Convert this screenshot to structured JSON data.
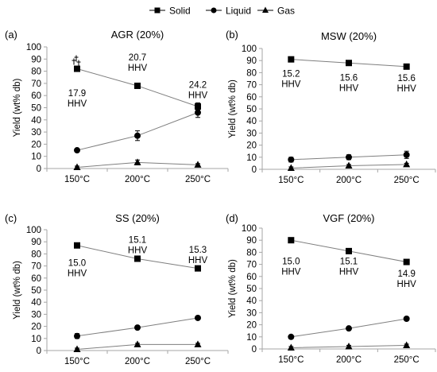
{
  "legend": {
    "position": "top-center",
    "items": [
      {
        "label": "Solid",
        "marker": "square"
      },
      {
        "label": "Liquid",
        "marker": "circle"
      },
      {
        "label": "Gas",
        "marker": "triangle"
      }
    ]
  },
  "colors": {
    "line": "#7f7f7f",
    "marker": "#000000",
    "axis": "#a6a6a6"
  },
  "chart_data": [
    {
      "type": "line",
      "panel_label": "(a)",
      "title": "AGR (20%)",
      "ylabel": "Yield (wt% db)",
      "xlabel": "",
      "categories": [
        "150°C",
        "200°C",
        "250°C"
      ],
      "ylim": [
        0,
        100
      ],
      "yticks": [
        0,
        10,
        20,
        30,
        40,
        50,
        60,
        70,
        80,
        90,
        100
      ],
      "grid": false,
      "series": [
        {
          "name": "Solid",
          "marker": "square",
          "values": [
            82,
            68,
            51
          ],
          "errors": [
            2,
            1,
            3
          ]
        },
        {
          "name": "Liquid",
          "marker": "circle",
          "values": [
            15,
            27,
            46
          ],
          "errors": [
            1,
            4,
            4
          ]
        },
        {
          "name": "Gas",
          "marker": "triangle",
          "values": [
            1,
            5,
            3
          ],
          "errors": [
            1,
            2,
            1
          ]
        }
      ],
      "annotations": [
        {
          "value": "17.9",
          "unit": "HHV",
          "category": 0,
          "y": 59.5
        },
        {
          "value": "20.7",
          "unit": "HHV",
          "category": 1,
          "y": 89
        },
        {
          "value": "24.2",
          "unit": "HHV",
          "category": 2,
          "y": 66.5
        }
      ],
      "extra_markers": [
        "daggers near the 150°C Solid point"
      ]
    },
    {
      "type": "line",
      "panel_label": "(b)",
      "title": "MSW (20%)",
      "ylabel": "Yield (wt% db)",
      "xlabel": "",
      "categories": [
        "150°C",
        "200°C",
        "250°C"
      ],
      "ylim": [
        0,
        100
      ],
      "yticks": [
        0,
        10,
        20,
        30,
        40,
        50,
        60,
        70,
        80,
        90,
        100
      ],
      "grid": false,
      "series": [
        {
          "name": "Solid",
          "marker": "square",
          "values": [
            91,
            88,
            85
          ],
          "errors": [
            0,
            0,
            0
          ]
        },
        {
          "name": "Liquid",
          "marker": "circle",
          "values": [
            8,
            10,
            12
          ],
          "errors": [
            2,
            2,
            3
          ]
        },
        {
          "name": "Gas",
          "marker": "triangle",
          "values": [
            1,
            3,
            4
          ],
          "errors": [
            1,
            1,
            1
          ]
        }
      ],
      "annotations": [
        {
          "value": "15.2",
          "unit": "HHV",
          "category": 0,
          "y": 76.5
        },
        {
          "value": "15.6",
          "unit": "HHV",
          "category": 1,
          "y": 73.5
        },
        {
          "value": "15.6",
          "unit": "HHV",
          "category": 2,
          "y": 73
        }
      ]
    },
    {
      "type": "line",
      "panel_label": "(c)",
      "title": "SS (20%)",
      "ylabel": "Yield (wt% db)",
      "xlabel": "",
      "categories": [
        "150°C",
        "200°C",
        "250°C"
      ],
      "ylim": [
        0,
        100
      ],
      "yticks": [
        0,
        10,
        20,
        30,
        40,
        50,
        60,
        70,
        80,
        90,
        100
      ],
      "grid": false,
      "series": [
        {
          "name": "Solid",
          "marker": "square",
          "values": [
            87,
            76,
            68
          ],
          "errors": [
            0,
            0,
            0
          ]
        },
        {
          "name": "Liquid",
          "marker": "circle",
          "values": [
            12,
            19,
            27
          ],
          "errors": [
            2,
            1,
            1
          ]
        },
        {
          "name": "Gas",
          "marker": "triangle",
          "values": [
            1,
            5,
            5
          ],
          "errors": [
            1,
            1,
            1
          ]
        }
      ],
      "annotations": [
        {
          "value": "15.0",
          "unit": "HHV",
          "category": 0,
          "y": 70
        },
        {
          "value": "15.1",
          "unit": "HHV",
          "category": 1,
          "y": 89
        },
        {
          "value": "15.3",
          "unit": "HHV",
          "category": 2,
          "y": 81
        }
      ]
    },
    {
      "type": "line",
      "panel_label": "(d)",
      "title": "VGF (20%)",
      "ylabel": "Yield (wt% db)",
      "xlabel": "",
      "categories": [
        "150°C",
        "200°C",
        "250°C"
      ],
      "ylim": [
        0,
        100
      ],
      "yticks": [
        0,
        10,
        20,
        30,
        40,
        50,
        60,
        70,
        80,
        90,
        100
      ],
      "grid": false,
      "series": [
        {
          "name": "Solid",
          "marker": "square",
          "values": [
            90,
            81,
            72
          ],
          "errors": [
            0,
            0,
            0
          ]
        },
        {
          "name": "Liquid",
          "marker": "circle",
          "values": [
            10,
            17,
            25
          ],
          "errors": [
            1,
            1,
            1
          ]
        },
        {
          "name": "Gas",
          "marker": "triangle",
          "values": [
            1,
            2,
            3
          ],
          "errors": [
            1,
            1,
            1
          ]
        }
      ],
      "annotations": [
        {
          "value": "15.0",
          "unit": "HHV",
          "category": 0,
          "y": 70
        },
        {
          "value": "15.1",
          "unit": "HHV",
          "category": 1,
          "y": 70
        },
        {
          "value": "14.9",
          "unit": "HHV",
          "category": 2,
          "y": 60
        }
      ]
    }
  ]
}
